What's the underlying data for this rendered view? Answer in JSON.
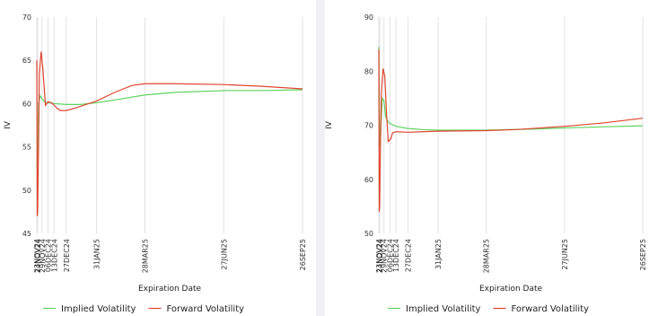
{
  "chart_data": [
    {
      "type": "line",
      "xlabel": "Expiration Date",
      "ylabel": "IV",
      "ylim": [
        45,
        70
      ],
      "yticks": [
        45,
        50,
        55,
        60,
        65,
        70
      ],
      "grid": "vertical",
      "legend_position": "bottom",
      "x_categories": [
        "23NOV24",
        "24NOV24",
        "29NOV24",
        "06DEC24",
        "13DEC24",
        "27DEC24",
        "31JAN25",
        "28MAR25",
        "27JUN25",
        "26SEP25"
      ],
      "x_tick_days": [
        0,
        1,
        6,
        13,
        20,
        34,
        69,
        125,
        216,
        307
      ],
      "series": [
        {
          "name": "Implied Volatility",
          "color": "#5fd35f",
          "points": [
            [
              0,
              52.5
            ],
            [
              1,
              54.5
            ],
            [
              2,
              60.0
            ],
            [
              4,
              60.9
            ],
            [
              6,
              60.6
            ],
            [
              9,
              60.2
            ],
            [
              13,
              60.1
            ],
            [
              20,
              60.0
            ],
            [
              34,
              59.9
            ],
            [
              50,
              59.9
            ],
            [
              69,
              60.1
            ],
            [
              95,
              60.5
            ],
            [
              125,
              61.0
            ],
            [
              160,
              61.3
            ],
            [
              216,
              61.5
            ],
            [
              260,
              61.5
            ],
            [
              307,
              61.6
            ]
          ]
        },
        {
          "name": "Forward Volatility",
          "color": "#e0452e",
          "points": [
            [
              0,
              65.0
            ],
            [
              0.5,
              47.0
            ],
            [
              1,
              47.5
            ],
            [
              2,
              55.0
            ],
            [
              3,
              63.5
            ],
            [
              5,
              66.0
            ],
            [
              7,
              64.0
            ],
            [
              10,
              59.8
            ],
            [
              13,
              60.2
            ],
            [
              17,
              60.1
            ],
            [
              23,
              59.5
            ],
            [
              27,
              59.2
            ],
            [
              34,
              59.2
            ],
            [
              45,
              59.5
            ],
            [
              69,
              60.3
            ],
            [
              90,
              61.3
            ],
            [
              110,
              62.1
            ],
            [
              125,
              62.3
            ],
            [
              160,
              62.3
            ],
            [
              216,
              62.2
            ],
            [
              260,
              62.0
            ],
            [
              307,
              61.7
            ]
          ]
        }
      ]
    },
    {
      "type": "line",
      "xlabel": "Expiration Date",
      "ylabel": "IV",
      "ylim": [
        50,
        90
      ],
      "yticks": [
        50,
        60,
        70,
        80,
        90
      ],
      "grid": "vertical",
      "legend_position": "bottom",
      "x_categories": [
        "23NOV24",
        "24NOV24",
        "29NOV24",
        "06DEC24",
        "13DEC24",
        "27DEC24",
        "31JAN25",
        "28MAR25",
        "27JUN25",
        "26SEP25"
      ],
      "x_tick_days": [
        0,
        1,
        6,
        13,
        20,
        34,
        69,
        125,
        216,
        307
      ],
      "series": [
        {
          "name": "Implied Volatility",
          "color": "#5fd35f",
          "points": [
            [
              0,
              84.5
            ],
            [
              1,
              66.0
            ],
            [
              2,
              68.0
            ],
            [
              4,
              75.0
            ],
            [
              6,
              74.5
            ],
            [
              8,
              71.5
            ],
            [
              12,
              70.4
            ],
            [
              20,
              69.8
            ],
            [
              34,
              69.4
            ],
            [
              50,
              69.2
            ],
            [
              69,
              69.1
            ],
            [
              125,
              69.1
            ],
            [
              180,
              69.3
            ],
            [
              216,
              69.5
            ],
            [
              260,
              69.7
            ],
            [
              307,
              69.9
            ]
          ]
        },
        {
          "name": "Forward Volatility",
          "color": "#e0452e",
          "points": [
            [
              0,
              84.0
            ],
            [
              0.5,
              54.0
            ],
            [
              1,
              55.0
            ],
            [
              2,
              67.0
            ],
            [
              3,
              76.0
            ],
            [
              5,
              80.5
            ],
            [
              7,
              79.0
            ],
            [
              9,
              72.0
            ],
            [
              11,
              67.0
            ],
            [
              14,
              67.5
            ],
            [
              16,
              68.6
            ],
            [
              20,
              68.8
            ],
            [
              34,
              68.7
            ],
            [
              50,
              68.8
            ],
            [
              69,
              68.9
            ],
            [
              125,
              69.0
            ],
            [
              160,
              69.2
            ],
            [
              216,
              69.8
            ],
            [
              260,
              70.4
            ],
            [
              307,
              71.3
            ]
          ]
        }
      ]
    }
  ]
}
